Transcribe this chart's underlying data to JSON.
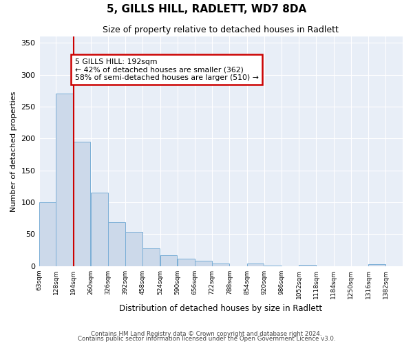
{
  "title": "5, GILLS HILL, RADLETT, WD7 8DA",
  "subtitle": "Size of property relative to detached houses in Radlett",
  "xlabel": "Distribution of detached houses by size in Radlett",
  "ylabel": "Number of detached properties",
  "bin_labels": [
    "63sqm",
    "128sqm",
    "194sqm",
    "260sqm",
    "326sqm",
    "392sqm",
    "458sqm",
    "524sqm",
    "590sqm",
    "656sqm",
    "722sqm",
    "788sqm",
    "854sqm",
    "920sqm",
    "986sqm",
    "1052sqm",
    "1118sqm",
    "1184sqm",
    "1250sqm",
    "1316sqm",
    "1382sqm"
  ],
  "bin_edges": [
    63,
    128,
    194,
    260,
    326,
    392,
    458,
    524,
    590,
    656,
    722,
    788,
    854,
    920,
    986,
    1052,
    1118,
    1184,
    1250,
    1316,
    1382
  ],
  "bar_heights": [
    100,
    270,
    195,
    115,
    69,
    54,
    28,
    17,
    11,
    8,
    4,
    0,
    4,
    1,
    0,
    2,
    0,
    0,
    0,
    3,
    0
  ],
  "bar_color": "#ccd9ea",
  "bar_edge_color": "#7aaed6",
  "property_line_x": 194,
  "property_line_color": "#cc0000",
  "annotation_text": "5 GILLS HILL: 192sqm\n← 42% of detached houses are smaller (362)\n58% of semi-detached houses are larger (510) →",
  "annotation_box_color": "#cc0000",
  "ylim": [
    0,
    360
  ],
  "yticks": [
    0,
    50,
    100,
    150,
    200,
    250,
    300,
    350
  ],
  "footer_line1": "Contains HM Land Registry data © Crown copyright and database right 2024.",
  "footer_line2": "Contains public sector information licensed under the Open Government Licence v3.0.",
  "fig_bg_color": "#ffffff",
  "plot_bg_color": "#e8eef7"
}
